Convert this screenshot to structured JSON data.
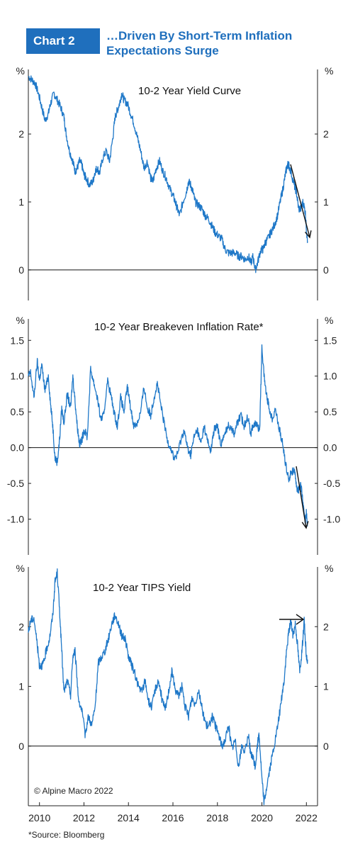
{
  "header": {
    "chart_number": "Chart 2",
    "title_line1": "…Driven  By Short-Term Inflation",
    "title_line2": "Expectations Surge"
  },
  "copyright": "© Alpine Macro 2022",
  "source_note": "*Source: Bloomberg",
  "colors": {
    "series": "#1f78c8",
    "accent": "#1f6fbd",
    "axis": "#222222"
  },
  "chart_data": [
    {
      "type": "line",
      "title": "10-2 Year Yield Curve",
      "unit": "%",
      "ylim": [
        -0.45,
        2.95
      ],
      "yticks": [
        0,
        1,
        2
      ],
      "xlim": [
        2009.5,
        2022.5
      ],
      "series": [
        {
          "x": [
            2009.5,
            2009.65,
            2009.8,
            2009.95,
            2010.1,
            2010.25,
            2010.4,
            2010.5,
            2010.65,
            2010.8,
            2010.95,
            2011.1,
            2011.2,
            2011.35,
            2011.5,
            2011.6,
            2011.7,
            2011.8,
            2011.9,
            2012.0,
            2012.1,
            2012.25,
            2012.4,
            2012.5,
            2012.6,
            2012.7,
            2012.85,
            2013.0,
            2013.15,
            2013.3,
            2013.4,
            2013.5,
            2013.6,
            2013.7,
            2013.8,
            2013.95,
            2014.1,
            2014.25,
            2014.4,
            2014.55,
            2014.7,
            2014.85,
            2015.0,
            2015.1,
            2015.25,
            2015.4,
            2015.55,
            2015.7,
            2015.85,
            2016.0,
            2016.1,
            2016.2,
            2016.3,
            2016.45,
            2016.6,
            2016.7,
            2016.8,
            2016.9,
            2017.0,
            2017.15,
            2017.3,
            2017.45,
            2017.6,
            2017.75,
            2017.9,
            2018.05,
            2018.2,
            2018.35,
            2018.5,
            2018.65,
            2018.8,
            2018.95,
            2019.1,
            2019.25,
            2019.4,
            2019.5,
            2019.6,
            2019.7,
            2019.8,
            2019.95,
            2020.05,
            2020.15,
            2020.25,
            2020.4,
            2020.55,
            2020.7,
            2020.85,
            2020.95,
            2021.05,
            2021.15,
            2021.2,
            2021.3,
            2021.45,
            2021.55,
            2021.65,
            2021.75,
            2021.85,
            2021.95,
            2022.0,
            2022.05
          ],
          "y": [
            2.85,
            2.8,
            2.75,
            2.6,
            2.4,
            2.2,
            2.3,
            2.45,
            2.6,
            2.5,
            2.4,
            2.25,
            2.0,
            1.75,
            1.6,
            1.45,
            1.5,
            1.6,
            1.55,
            1.4,
            1.35,
            1.25,
            1.3,
            1.45,
            1.5,
            1.42,
            1.65,
            1.75,
            1.6,
            1.95,
            2.25,
            2.35,
            2.45,
            2.6,
            2.5,
            2.45,
            2.3,
            2.15,
            1.95,
            1.75,
            1.5,
            1.6,
            1.35,
            1.3,
            1.5,
            1.6,
            1.45,
            1.35,
            1.2,
            1.1,
            1.0,
            0.9,
            0.8,
            1.0,
            1.15,
            1.3,
            1.25,
            1.15,
            1.0,
            0.95,
            0.9,
            0.8,
            0.75,
            0.65,
            0.55,
            0.5,
            0.45,
            0.3,
            0.25,
            0.25,
            0.25,
            0.2,
            0.2,
            0.15,
            0.2,
            0.1,
            0.2,
            0.0,
            0.1,
            0.3,
            0.3,
            0.4,
            0.45,
            0.55,
            0.65,
            0.8,
            1.05,
            1.2,
            1.4,
            1.55,
            1.55,
            1.45,
            1.25,
            1.15,
            0.9,
            0.9,
            1.0,
            0.85,
            0.6,
            0.42
          ]
        }
      ],
      "annotation": "arrow-down"
    },
    {
      "type": "line",
      "title": "10-2 Year Breakeven Inflation Rate*",
      "unit": "%",
      "ylim": [
        -1.5,
        1.8
      ],
      "yticks": [
        1.5,
        1.0,
        0.5,
        0.0,
        -0.5,
        -1.0
      ],
      "xlim": [
        2009.5,
        2022.5
      ],
      "series": [
        {
          "x": [
            2009.5,
            2009.6,
            2009.75,
            2009.9,
            2010.0,
            2010.1,
            2010.25,
            2010.4,
            2010.5,
            2010.6,
            2010.7,
            2010.8,
            2010.9,
            2011.0,
            2011.1,
            2011.25,
            2011.4,
            2011.5,
            2011.6,
            2011.7,
            2011.8,
            2011.9,
            2012.0,
            2012.15,
            2012.3,
            2012.45,
            2012.6,
            2012.75,
            2012.9,
            2013.05,
            2013.2,
            2013.35,
            2013.5,
            2013.65,
            2013.8,
            2013.95,
            2014.1,
            2014.25,
            2014.4,
            2014.55,
            2014.7,
            2014.85,
            2015.0,
            2015.15,
            2015.3,
            2015.45,
            2015.6,
            2015.75,
            2015.9,
            2016.05,
            2016.2,
            2016.35,
            2016.5,
            2016.65,
            2016.8,
            2016.95,
            2017.1,
            2017.25,
            2017.4,
            2017.55,
            2017.7,
            2017.85,
            2018.0,
            2018.15,
            2018.3,
            2018.45,
            2018.6,
            2018.75,
            2018.9,
            2019.05,
            2019.2,
            2019.35,
            2019.5,
            2019.65,
            2019.8,
            2019.9,
            2020.0,
            2020.1,
            2020.2,
            2020.3,
            2020.45,
            2020.6,
            2020.75,
            2020.9,
            2021.05,
            2021.2,
            2021.3,
            2021.45,
            2021.55,
            2021.65,
            2021.75,
            2021.85,
            2021.95,
            2022.0,
            2022.05
          ],
          "y": [
            1.0,
            1.05,
            0.7,
            1.2,
            0.95,
            1.15,
            0.8,
            1.0,
            0.6,
            0.3,
            -0.15,
            -0.2,
            0.1,
            0.55,
            0.35,
            0.75,
            0.55,
            1.0,
            0.65,
            0.3,
            0.05,
            0.1,
            0.25,
            0.15,
            1.1,
            0.9,
            0.7,
            0.4,
            0.45,
            0.95,
            0.75,
            0.5,
            0.3,
            0.7,
            0.5,
            0.85,
            0.55,
            0.3,
            0.35,
            0.5,
            0.85,
            0.55,
            0.45,
            0.7,
            0.9,
            0.6,
            0.35,
            0.1,
            0.0,
            -0.15,
            -0.1,
            0.1,
            0.25,
            0.0,
            -0.1,
            0.15,
            0.25,
            0.05,
            0.3,
            0.1,
            -0.05,
            0.25,
            0.3,
            0.05,
            0.15,
            0.3,
            0.3,
            0.2,
            0.35,
            0.45,
            0.3,
            0.45,
            0.2,
            0.35,
            0.3,
            0.25,
            1.4,
            1.0,
            0.75,
            0.6,
            0.4,
            0.55,
            0.3,
            0.1,
            -0.2,
            -0.45,
            -0.35,
            -0.3,
            -0.55,
            -0.6,
            -0.5,
            -0.8,
            -1.05,
            -0.9,
            -1.1
          ]
        }
      ],
      "annotation": "arrow-down"
    },
    {
      "type": "line",
      "title": "10-2 Year TIPS Yield",
      "unit": "%",
      "ylim": [
        -1.0,
        3.0
      ],
      "yticks": [
        0,
        1,
        2
      ],
      "xlim": [
        2009.5,
        2022.5
      ],
      "series": [
        {
          "x": [
            2009.5,
            2009.6,
            2009.75,
            2009.9,
            2010.0,
            2010.1,
            2010.2,
            2010.3,
            2010.45,
            2010.6,
            2010.7,
            2010.8,
            2010.9,
            2011.0,
            2011.1,
            2011.25,
            2011.4,
            2011.5,
            2011.6,
            2011.75,
            2011.9,
            2012.05,
            2012.2,
            2012.35,
            2012.5,
            2012.65,
            2012.8,
            2012.95,
            2013.1,
            2013.25,
            2013.4,
            2013.55,
            2013.7,
            2013.85,
            2014.0,
            2014.15,
            2014.3,
            2014.45,
            2014.6,
            2014.75,
            2014.9,
            2015.05,
            2015.2,
            2015.35,
            2015.5,
            2015.65,
            2015.8,
            2015.95,
            2016.1,
            2016.25,
            2016.4,
            2016.55,
            2016.7,
            2016.85,
            2017.0,
            2017.15,
            2017.3,
            2017.45,
            2017.6,
            2017.75,
            2017.9,
            2018.05,
            2018.2,
            2018.35,
            2018.5,
            2018.65,
            2018.8,
            2018.95,
            2019.1,
            2019.25,
            2019.4,
            2019.5,
            2019.6,
            2019.7,
            2019.8,
            2019.85,
            2019.9,
            2020.0,
            2020.1,
            2020.25,
            2020.4,
            2020.55,
            2020.7,
            2020.85,
            2021.0,
            2021.1,
            2021.2,
            2021.3,
            2021.4,
            2021.5,
            2021.6,
            2021.7,
            2021.8,
            2021.9,
            2022.0,
            2022.05
          ],
          "y": [
            1.9,
            2.1,
            2.15,
            1.7,
            1.35,
            1.35,
            1.4,
            1.6,
            1.8,
            2.2,
            2.75,
            2.9,
            2.3,
            1.6,
            0.9,
            1.1,
            0.85,
            1.5,
            1.6,
            0.8,
            0.6,
            0.2,
            0.5,
            0.35,
            0.65,
            1.4,
            1.5,
            1.6,
            1.8,
            2.05,
            2.2,
            2.05,
            1.85,
            1.8,
            1.5,
            1.35,
            1.2,
            1.0,
            0.9,
            1.1,
            0.75,
            0.65,
            0.95,
            1.1,
            0.8,
            0.6,
            0.9,
            1.25,
            0.95,
            0.85,
            1.0,
            0.65,
            0.5,
            0.8,
            0.7,
            0.95,
            0.65,
            0.4,
            0.3,
            0.5,
            0.35,
            0.2,
            0.0,
            0.1,
            0.35,
            -0.05,
            0.1,
            -0.35,
            0.0,
            -0.1,
            0.2,
            -0.15,
            -0.2,
            -0.35,
            0.0,
            0.2,
            0.05,
            -0.55,
            -0.95,
            -0.6,
            -0.3,
            0.0,
            0.3,
            0.7,
            1.1,
            1.55,
            1.9,
            2.1,
            1.85,
            2.05,
            1.7,
            1.25,
            1.6,
            2.1,
            1.5,
            1.45
          ]
        }
      ],
      "annotation": "arrow-right"
    }
  ],
  "x_axis": {
    "ticks": [
      "2010",
      "2012",
      "2014",
      "2016",
      "2018",
      "2020",
      "2022"
    ],
    "tick_values": [
      2010,
      2012,
      2014,
      2016,
      2018,
      2020,
      2022
    ]
  }
}
